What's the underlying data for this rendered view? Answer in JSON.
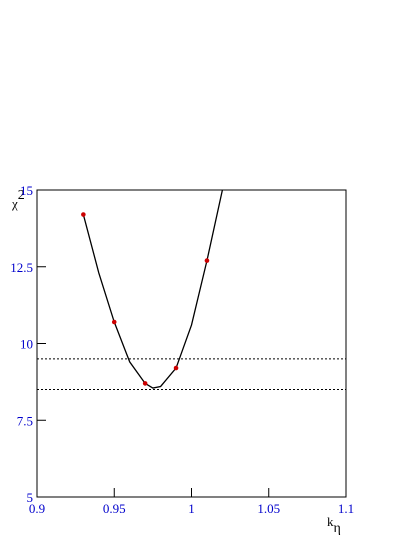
{
  "chart_data": {
    "type": "scatter",
    "x": [
      0.93,
      0.95,
      0.97,
      0.99,
      1.01
    ],
    "values": [
      14.2,
      10.7,
      8.7,
      9.2,
      12.7
    ],
    "color": "#cc0000",
    "fit": {
      "x": [
        0.93,
        0.94,
        0.95,
        0.96,
        0.97,
        0.975,
        0.98,
        0.99,
        1.0,
        1.01,
        1.02
      ],
      "values": [
        14.2,
        12.3,
        10.7,
        9.4,
        8.7,
        8.55,
        8.6,
        9.2,
        10.6,
        12.7,
        15
      ],
      "color": "#000000"
    },
    "hlines": [
      8.5,
      9.5
    ],
    "xlabel": {
      "text": "k",
      "subscript": "η"
    },
    "ylabel": {
      "text": "χ",
      "superscript": "2"
    },
    "xlim": [
      0.9,
      1.1
    ],
    "xticks": [
      0.9,
      0.95,
      1,
      1.05,
      1.1
    ],
    "ylim": [
      5,
      15
    ],
    "yticks": [
      5,
      7.5,
      10,
      12.5,
      15
    ],
    "tick_color": "#0000cc"
  }
}
